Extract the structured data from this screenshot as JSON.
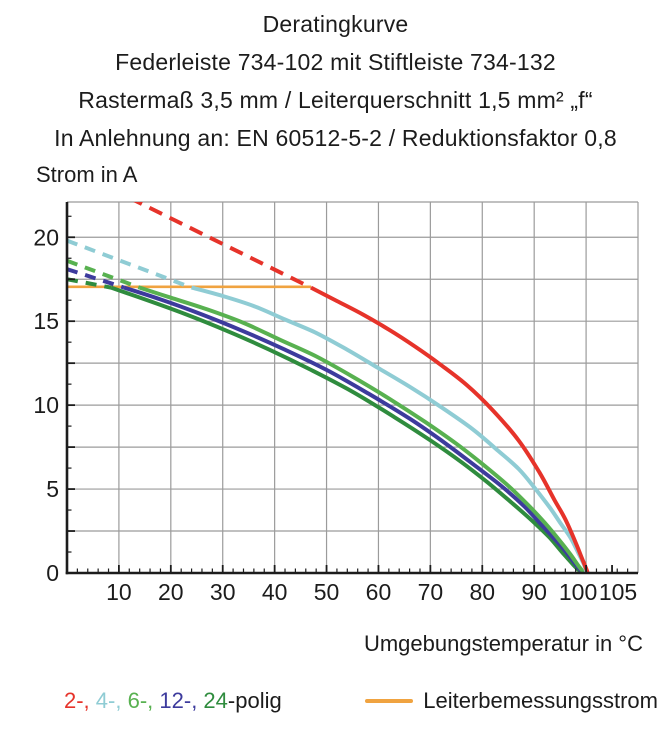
{
  "header": {
    "lines": [
      "Deratingkurve",
      "Federleiste 734-102 mit Stiftleiste 734-132",
      "Rastermaß 3,5 mm / Leiterquerschnitt 1,5 mm² „f“",
      "In Anlehnung an: EN 60512-5-2 / Reduktionsfaktor 0,8"
    ]
  },
  "legend": {
    "pole_items": [
      {
        "text": "2-, ",
        "color": "#e6332a"
      },
      {
        "text": "4-, ",
        "color": "#8fccd4"
      },
      {
        "text": "6-, ",
        "color": "#58b150"
      },
      {
        "text": "12-, ",
        "color": "#3d3b9d"
      },
      {
        "text": "24",
        "color": "#2f8c3e"
      }
    ],
    "suffix": {
      "text": "-polig",
      "color": "#1c1c1c"
    },
    "rated_label": "Leiterbemessungsstrom",
    "rated_color": "#f0a340"
  },
  "colors": {
    "grid": "#9b9b9b",
    "axis": "#1c1c1c",
    "background": "#ffffff"
  },
  "chart_data": {
    "type": "line",
    "title": "Deratingkurve",
    "xlabel": "Umgebungstemperatur in °C",
    "ylabel": "Strom in A",
    "xlim": [
      0,
      110
    ],
    "ylim": [
      0,
      22.1
    ],
    "x_tick_labels": [
      10,
      20,
      30,
      40,
      50,
      60,
      70,
      80,
      90,
      100,
      105
    ],
    "x_grid_step": 10,
    "x_minor_tick_step": 2,
    "y_tick_labels": [
      0,
      5,
      10,
      15,
      20
    ],
    "y_grid_step": 2.5,
    "y_minor_tick_step": 1.25,
    "grid": true,
    "legend_position": "bottom",
    "series": [
      {
        "name": "2-polig",
        "color": "#e6332a",
        "width": 4,
        "dash": [
          14,
          8.5
        ],
        "dashed": [
          [
            12.0,
            22.35
          ],
          [
            47,
            17.0
          ]
        ],
        "solid": [
          [
            47,
            17.0
          ],
          [
            52,
            16.2
          ],
          [
            57,
            15.4
          ],
          [
            62,
            14.5
          ],
          [
            67,
            13.5
          ],
          [
            72,
            12.4
          ],
          [
            77,
            11.2
          ],
          [
            82,
            9.7
          ],
          [
            87,
            7.9
          ],
          [
            91,
            6.0
          ],
          [
            94,
            4.3
          ],
          [
            96,
            3.2
          ],
          [
            98,
            1.8
          ],
          [
            99.3,
            0.8
          ],
          [
            100.1,
            0.2
          ],
          [
            100.3,
            0
          ]
        ]
      },
      {
        "name": "4-polig",
        "color": "#8fccd4",
        "width": 4,
        "dash": [
          11,
          8
        ],
        "dashed": [
          [
            0,
            19.8
          ],
          [
            24,
            17.0
          ]
        ],
        "solid": [
          [
            24,
            17.0
          ],
          [
            30,
            16.5
          ],
          [
            36,
            15.9
          ],
          [
            42,
            15.1
          ],
          [
            48,
            14.3
          ],
          [
            54,
            13.3
          ],
          [
            60,
            12.2
          ],
          [
            66,
            11.1
          ],
          [
            72,
            9.9
          ],
          [
            78,
            8.6
          ],
          [
            83,
            7.3
          ],
          [
            87,
            6.2
          ],
          [
            90,
            5.1
          ],
          [
            93,
            3.9
          ],
          [
            95,
            3.0
          ],
          [
            97,
            2.1
          ],
          [
            98.5,
            1.2
          ],
          [
            99.6,
            0.5
          ],
          [
            100.1,
            0
          ]
        ]
      },
      {
        "name": "6-polig",
        "color": "#58b150",
        "width": 4,
        "dash": [
          11,
          8
        ],
        "dashed": [
          [
            0,
            18.6
          ],
          [
            14,
            17.0
          ]
        ],
        "solid": [
          [
            14,
            17.0
          ],
          [
            20,
            16.4
          ],
          [
            27,
            15.7
          ],
          [
            34,
            14.9
          ],
          [
            41,
            13.9
          ],
          [
            48,
            12.9
          ],
          [
            55,
            11.7
          ],
          [
            62,
            10.4
          ],
          [
            69,
            9.0
          ],
          [
            75,
            7.7
          ],
          [
            80,
            6.5
          ],
          [
            85,
            5.2
          ],
          [
            89,
            4.0
          ],
          [
            92,
            3.0
          ],
          [
            95,
            1.9
          ],
          [
            97,
            1.1
          ],
          [
            98.6,
            0.4
          ],
          [
            99.4,
            0.1
          ],
          [
            99.8,
            0
          ]
        ]
      },
      {
        "name": "12-polig",
        "color": "#3d3b9d",
        "width": 4,
        "dash": [
          11,
          8
        ],
        "dashed": [
          [
            0,
            18.1
          ],
          [
            11,
            17.0
          ]
        ],
        "solid": [
          [
            11,
            17.0
          ],
          [
            18,
            16.3
          ],
          [
            26,
            15.4
          ],
          [
            34,
            14.4
          ],
          [
            42,
            13.3
          ],
          [
            50,
            12.1
          ],
          [
            58,
            10.7
          ],
          [
            66,
            9.2
          ],
          [
            73,
            7.7
          ],
          [
            79,
            6.3
          ],
          [
            84,
            5.1
          ],
          [
            88,
            4.0
          ],
          [
            91,
            3.0
          ],
          [
            94,
            2.0
          ],
          [
            96,
            1.3
          ],
          [
            98,
            0.5
          ],
          [
            99.1,
            0.1
          ],
          [
            99.4,
            0
          ]
        ]
      },
      {
        "name": "24-polig",
        "color": "#2f8c3e",
        "width": 4,
        "dash": [
          11,
          8
        ],
        "dashed": [
          [
            0,
            17.5
          ],
          [
            8.5,
            17.0
          ]
        ],
        "solid": [
          [
            8.5,
            17.0
          ],
          [
            15,
            16.3
          ],
          [
            23,
            15.4
          ],
          [
            31,
            14.4
          ],
          [
            39,
            13.3
          ],
          [
            47,
            12.1
          ],
          [
            55,
            10.8
          ],
          [
            63,
            9.3
          ],
          [
            70,
            7.9
          ],
          [
            76,
            6.6
          ],
          [
            81,
            5.4
          ],
          [
            86,
            4.1
          ],
          [
            90,
            3.0
          ],
          [
            93,
            2.1
          ],
          [
            95.5,
            1.2
          ],
          [
            97.5,
            0.5
          ],
          [
            98.8,
            0.1
          ],
          [
            99.1,
            0
          ]
        ]
      },
      {
        "name": "Leiterbemessungsstrom",
        "color": "#f0a340",
        "width": 2.6,
        "dash": null,
        "dashed": null,
        "solid": [
          [
            0,
            17.05
          ],
          [
            47,
            17.05
          ]
        ]
      }
    ]
  }
}
